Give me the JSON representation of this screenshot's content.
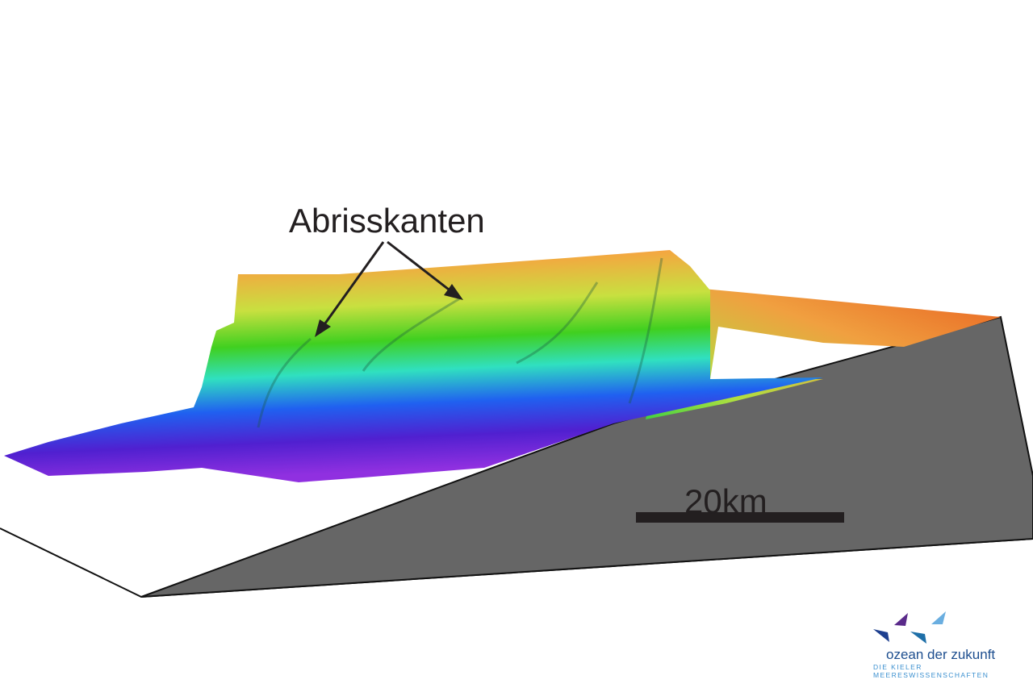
{
  "annotation": {
    "label": "Abrisskanten"
  },
  "scale_bar": {
    "label": "20km"
  },
  "colors": {
    "terrain_gradient": [
      "#e85a1a",
      "#f5a540",
      "#c8e040",
      "#40d020",
      "#30e0c0",
      "#2060f0",
      "#5020d0",
      "#9030e0"
    ],
    "base_fill": "#666666",
    "scale_bar": "#231f20"
  },
  "logo": {
    "name": "ozean der zukunft",
    "tagline": "DIE KIELER MEERESWISSENSCHAFTEN"
  }
}
